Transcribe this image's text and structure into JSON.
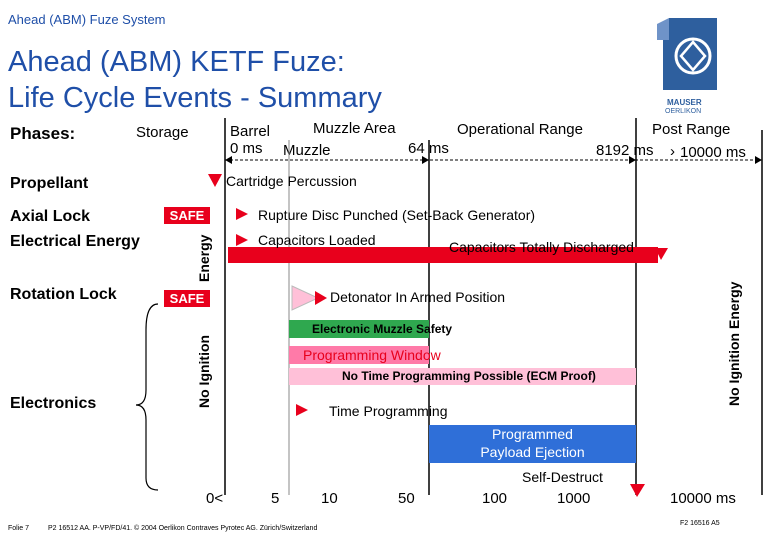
{
  "header": {
    "section": "Ahead (ABM) Fuze System"
  },
  "title": {
    "line1": "Ahead (ABM) KETF Fuze:",
    "line2": "Life Cycle Events - Summary"
  },
  "logo": {
    "text1": "MAUSER",
    "text2": "OERLIKON",
    "icon": "mauser-oerlikon-logo"
  },
  "phases": {
    "label": "Phases:",
    "storage": "Storage",
    "barrel": "Barrel",
    "barrel_time": "0 ms",
    "muzzle": "Muzzle",
    "muzzle_area": "Muzzle Area",
    "muzzle_time": "64 ms",
    "operational": "Operational Range",
    "operational_time": "8192 ms",
    "post": "Post Range",
    "post_time": "10000 ms",
    "post_prefix": "›"
  },
  "rows": {
    "propellant": "Propellant",
    "axial_lock": "Axial Lock",
    "electrical_energy": "Electrical Energy",
    "rotation_lock": "Rotation Lock",
    "electronics": "Electronics"
  },
  "labels": {
    "safe1": "SAFE",
    "safe2": "SAFE",
    "energy": "Energy",
    "no_ignition": "No Ignition",
    "no_ignition_energy": "No Ignition Energy"
  },
  "events": {
    "cartridge": "Cartridge Percussion",
    "rupture": "Rupture Disc Punched  (Set-Back Generator)",
    "capacitors_loaded": "Capacitors Loaded",
    "capacitors_discharged": "Capacitors Totally Discharged",
    "detonator": "Detonator In Armed Position",
    "muzzle_safety": "Electronic Muzzle Safety",
    "programming_window": "Programming Window",
    "no_time_programming": "No Time Programming Possible (ECM Proof)",
    "time_programming": "Time Programming",
    "programmed_line1": "Programmed",
    "programmed_line2": "Payload Ejection",
    "self_destruct": "Self-Destruct"
  },
  "axis": {
    "ticks": [
      "0<",
      "5",
      "10",
      "50",
      "100",
      "1000",
      "10000 ms"
    ]
  },
  "footer": {
    "folie": "Folie 7",
    "copyright": "P2 16512 AA. P-VP/FD/41. © 2004 Oerlikon Contraves Pyrotec AG. Zürich/Switzerland",
    "ref": "F2 16516 A5"
  },
  "colors": {
    "title": "#1f4fa8",
    "red": "#e8001c",
    "blue": "#2f6fd8",
    "green": "#2fa84f",
    "pink": "#ff7aa8",
    "light_pink": "#ffc0d8"
  }
}
